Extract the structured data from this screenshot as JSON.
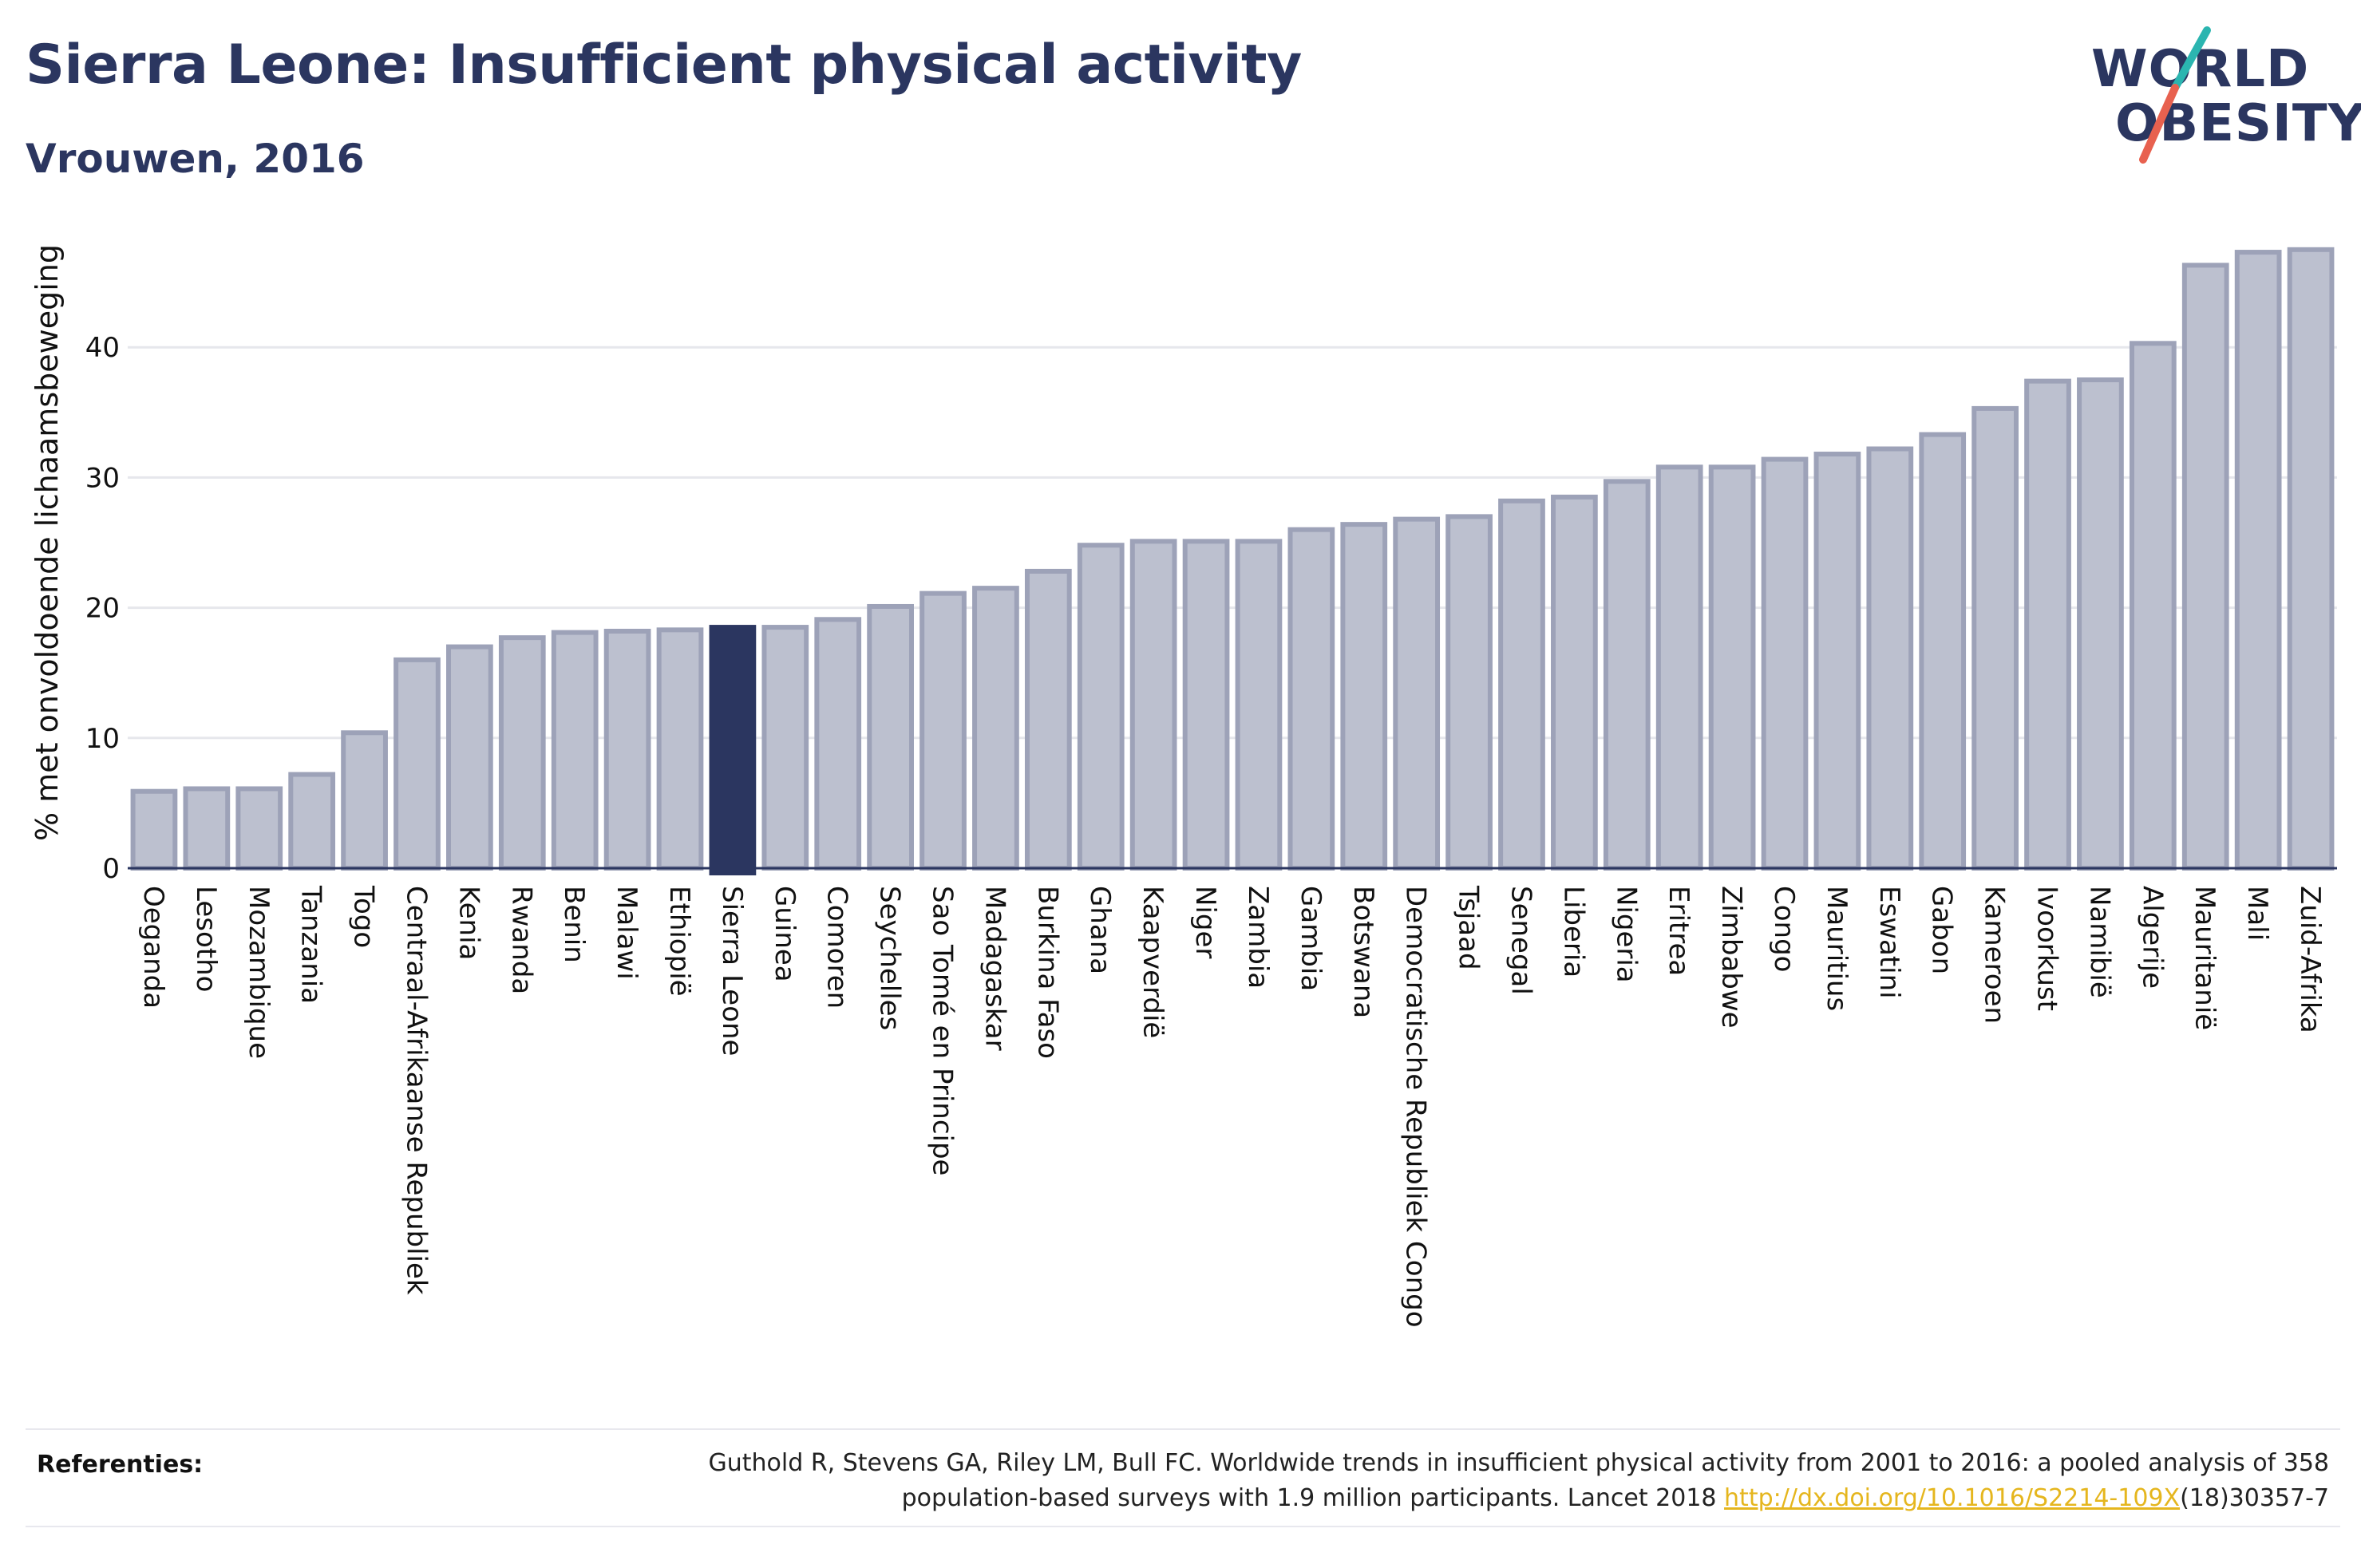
{
  "header": {
    "title": "Sierra Leone: Insufficient physical activity",
    "subtitle": "Vrouwen, 2016"
  },
  "logo": {
    "line1": "WORLD",
    "line2": "OBESITY",
    "colors": {
      "text": "#2b3660",
      "slash_teal": "#2bb5b0",
      "slash_red": "#e8614f"
    }
  },
  "chart_data": {
    "type": "bar",
    "ylabel": "% met onvoldoende lichaamsbeweging",
    "ylim": [
      0,
      50
    ],
    "yticks": [
      0,
      10,
      20,
      30,
      40
    ],
    "grid": true,
    "highlight": "Sierra Leone",
    "colors": {
      "bar": "#bcc0cf",
      "bar_border": "#9da2b8",
      "highlight": "#2b3660"
    },
    "categories": [
      "Oeganda",
      "Lesotho",
      "Mozambique",
      "Tanzania",
      "Togo",
      "Centraal-Afrikaanse Republiek",
      "Kenia",
      "Rwanda",
      "Benin",
      "Malawi",
      "Ethiopië",
      "Sierra Leone",
      "Guinea",
      "Comoren",
      "Seychelles",
      "Sao Tomé en Principe",
      "Madagaskar",
      "Burkina Faso",
      "Ghana",
      "Kaapverdië",
      "Niger",
      "Zambia",
      "Gambia",
      "Botswana",
      "Democratische Republiek Congo",
      "Tsjaad",
      "Senegal",
      "Liberia",
      "Nigeria",
      "Eritrea",
      "Zimbabwe",
      "Congo",
      "Mauritius",
      "Eswatini",
      "Gabon",
      "Kameroen",
      "Ivoorkust",
      "Namibië",
      "Algerije",
      "Mauritanië",
      "Mali",
      "Zuid-Afrika"
    ],
    "values": [
      5.9,
      6.1,
      6.1,
      7.2,
      10.4,
      16.0,
      17.0,
      17.7,
      18.1,
      18.2,
      18.3,
      18.5,
      18.5,
      19.1,
      20.1,
      21.1,
      21.5,
      22.8,
      24.8,
      25.1,
      25.1,
      25.1,
      26.0,
      26.4,
      26.8,
      27.0,
      28.2,
      28.5,
      29.7,
      30.8,
      30.8,
      31.4,
      31.8,
      32.2,
      33.3,
      35.3,
      37.4,
      37.5,
      40.3,
      46.3,
      47.3,
      47.5
    ]
  },
  "references": {
    "label": "Referenties:",
    "text_line1": "Guthold R, Stevens GA, Riley LM, Bull FC. Worldwide trends in insufficient physical activity from 2001 to 2016: a pooled analysis of 358",
    "text_line2_before": "population-based surveys with 1.9 million participants. Lancet 2018 ",
    "link": "http://dx.doi.org/10.1016/S2214-109X",
    "text_line2_after": "(18)30357-7"
  }
}
